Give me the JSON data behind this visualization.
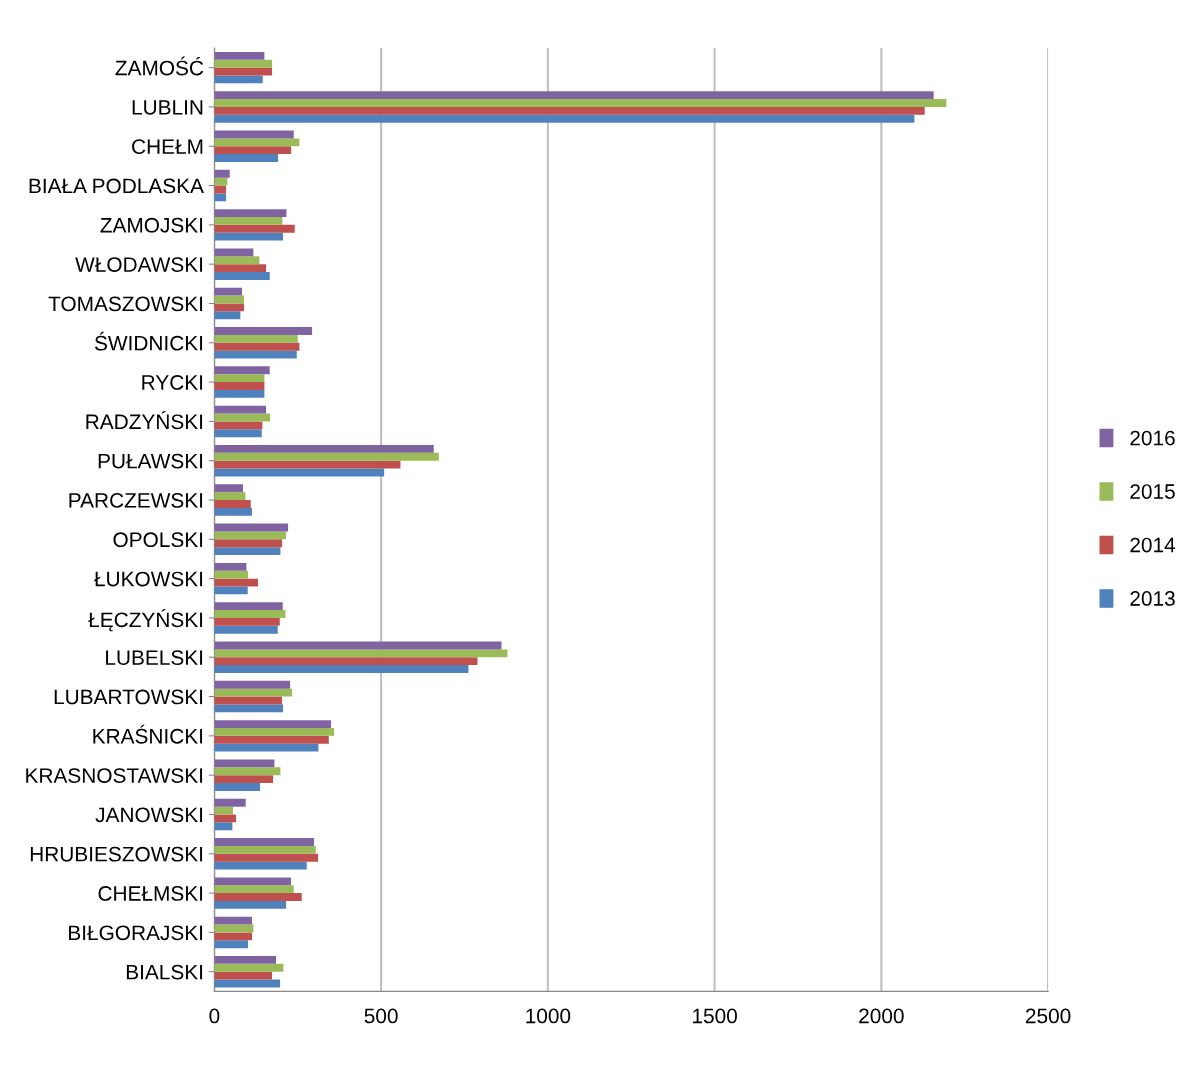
{
  "chart_data": {
    "type": "bar",
    "orientation": "horizontal",
    "categories": [
      "ZAMOŚĆ",
      "LUBLIN",
      "CHEŁM",
      "BIAŁA PODLASKA",
      "ZAMOJSKI",
      "WŁODAWSKI",
      "TOMASZOWSKI",
      "ŚWIDNICKI",
      "RYCKI",
      "RADZYŃSKI",
      "PUŁAWSKI",
      "PARCZEWSKI",
      "OPOLSKI",
      "ŁUKOWSKI",
      "ŁĘCZYŃSKI",
      "LUBELSKI",
      "LUBARTOWSKI",
      "KRAŚNICKI",
      "KRASNOSTAWSKI",
      "JANOWSKI",
      "HRUBIESZOWSKI",
      "CHEŁMSKI",
      "BIŁGORAJSKI",
      "BIALSKI"
    ],
    "series": [
      {
        "name": "2013",
        "color": "#4f81bd",
        "values": [
          145,
          2099,
          191,
          35,
          206,
          166,
          78,
          247,
          150,
          142,
          509,
          113,
          198,
          100,
          190,
          762,
          206,
          312,
          137,
          54,
          277,
          215,
          101,
          197
        ]
      },
      {
        "name": "2014",
        "color": "#c0504d",
        "values": [
          173,
          2130,
          230,
          35,
          241,
          155,
          89,
          255,
          150,
          144,
          558,
          109,
          203,
          131,
          196,
          789,
          203,
          343,
          176,
          65,
          311,
          262,
          113,
          173
        ]
      },
      {
        "name": "2015",
        "color": "#9bbb59",
        "values": [
          173,
          2195,
          255,
          39,
          204,
          135,
          89,
          250,
          150,
          167,
          673,
          93,
          215,
          101,
          213,
          879,
          233,
          359,
          198,
          56,
          304,
          238,
          117,
          207
        ]
      },
      {
        "name": "2016",
        "color": "#8064a2",
        "values": [
          150,
          2157,
          238,
          46,
          216,
          117,
          83,
          293,
          166,
          155,
          658,
          86,
          221,
          96,
          205,
          861,
          227,
          350,
          180,
          94,
          299,
          230,
          113,
          185
        ]
      }
    ],
    "xlim": [
      0,
      2500
    ],
    "xticks": [
      0,
      500,
      1000,
      1500,
      2000,
      2500
    ],
    "grid": "x",
    "legend": "right"
  }
}
